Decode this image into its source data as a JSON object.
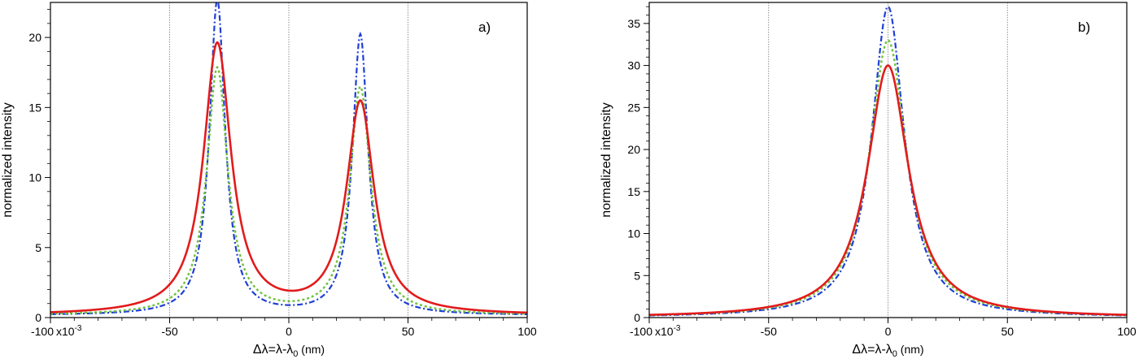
{
  "figure": "two-panel spectral intensity plot",
  "chart_data": [
    {
      "type": "line",
      "panel_label": "a)",
      "xlabel": "Δλ=λ-λ0 (nm)",
      "xlabel_parts": {
        "main": "Δλ=λ-λ",
        "sub": "0",
        "unit": " (nm)"
      },
      "ylabel": "normalized intensity",
      "x_scale_note": "x10-3",
      "x_scale_parts": {
        "base": "x10",
        "exp": "-3"
      },
      "xlim": [
        -100,
        100
      ],
      "ylim": [
        0,
        22.5
      ],
      "x_ticks": [
        -100,
        -50,
        0,
        50,
        100
      ],
      "y_ticks": [
        0,
        5,
        10,
        15,
        20
      ],
      "x_gridlines": [
        -50,
        0,
        50
      ],
      "series": [
        {
          "name": "blue dash-dot",
          "color": "#1f3fd6",
          "style": "dashdot",
          "peaks": [
            {
              "center": -30,
              "height": 22.5,
              "gamma": 4.0
            },
            {
              "center": 30,
              "height": 20.0,
              "gamma": 4.0
            }
          ],
          "baseline": 0.15
        },
        {
          "name": "green dotted",
          "color": "#6ec23c",
          "style": "dotted",
          "peaks": [
            {
              "center": -30,
              "height": 17.6,
              "gamma": 5.3
            },
            {
              "center": 30,
              "height": 16.2,
              "gamma": 5.3
            }
          ],
          "baseline": 0.15
        },
        {
          "name": "red solid",
          "color": "#e21b1b",
          "style": "solid",
          "peaks": [
            {
              "center": -30,
              "height": 19.3,
              "gamma": 7.0
            },
            {
              "center": 30,
              "height": 15.1,
              "gamma": 7.0
            }
          ],
          "baseline": 0.15
        }
      ]
    },
    {
      "type": "line",
      "panel_label": "b)",
      "xlabel": "Δλ=λ-λ0 (nm)",
      "xlabel_parts": {
        "main": "Δλ=λ-λ",
        "sub": "0",
        "unit": " (nm)"
      },
      "ylabel": "normalized intensity",
      "x_scale_note": "x10-3",
      "x_scale_parts": {
        "base": "x10",
        "exp": "-3"
      },
      "xlim": [
        -100,
        100
      ],
      "ylim": [
        0,
        37.5
      ],
      "x_ticks": [
        -100,
        -50,
        0,
        50,
        100
      ],
      "y_ticks": [
        0,
        5,
        10,
        15,
        20,
        25,
        30,
        35
      ],
      "x_gridlines": [
        -50,
        0,
        50
      ],
      "series": [
        {
          "name": "blue dash-dot",
          "color": "#1f3fd6",
          "style": "dashdot",
          "peaks": [
            {
              "center": 0,
              "height": 37.0,
              "gamma": 8.3
            }
          ],
          "baseline": 0.0
        },
        {
          "name": "green dotted",
          "color": "#6ec23c",
          "style": "dotted",
          "peaks": [
            {
              "center": 0,
              "height": 33.0,
              "gamma": 9.5
            }
          ],
          "baseline": 0.0
        },
        {
          "name": "red solid",
          "color": "#e21b1b",
          "style": "solid",
          "peaks": [
            {
              "center": 0,
              "height": 30.0,
              "gamma": 10.5
            }
          ],
          "baseline": 0.0
        }
      ]
    }
  ]
}
